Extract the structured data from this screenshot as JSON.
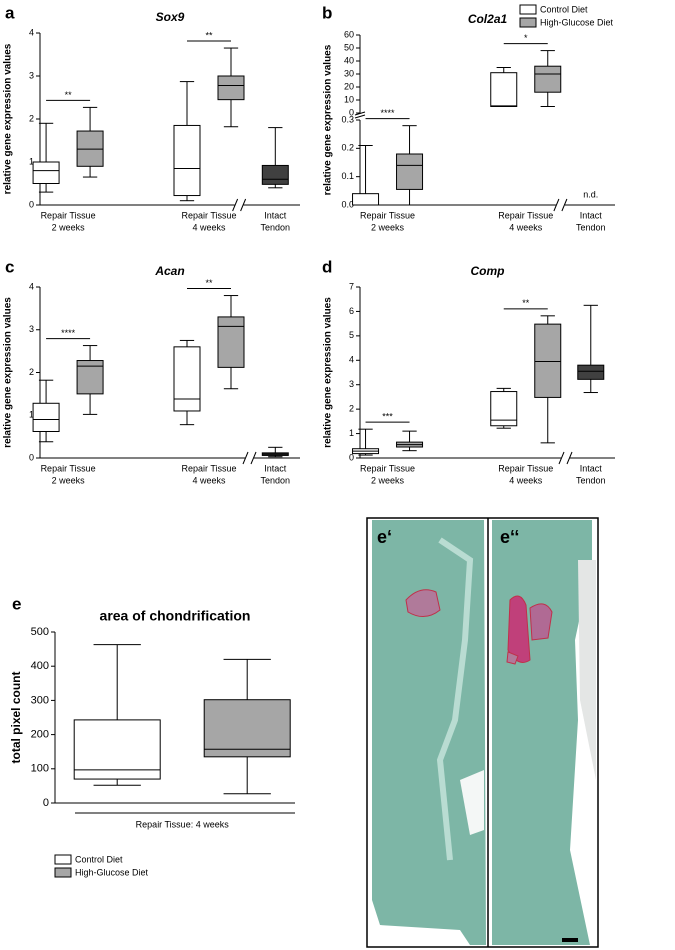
{
  "chart_data": [
    {
      "type": "box",
      "letter": "a",
      "title": "Sox9",
      "italic_title": true,
      "ylabel": "relative gene expression values",
      "ylim": [
        0,
        4
      ],
      "yticks": [
        0,
        1,
        2,
        3,
        4
      ],
      "axis_break": true,
      "categories": [
        {
          "label": [
            "Repair Tissue",
            "2 weeks"
          ],
          "significance": "**",
          "boxes": [
            {
              "color": "#ffffff",
              "stats": [
                0.3,
                0.5,
                0.8,
                1.0,
                1.9
              ]
            },
            {
              "color": "#a6a6a6",
              "stats": [
                0.65,
                0.9,
                1.3,
                1.72,
                2.27
              ]
            }
          ]
        },
        {
          "label": [
            "Repair Tissue",
            "4 weeks"
          ],
          "significance": "**",
          "boxes": [
            {
              "color": "#ffffff",
              "stats": [
                0.1,
                0.22,
                0.85,
                1.85,
                2.87
              ]
            },
            {
              "color": "#a6a6a6",
              "stats": [
                1.82,
                2.45,
                2.78,
                3.0,
                3.65
              ]
            }
          ]
        },
        {
          "label": [
            "Intact",
            "Tendon"
          ],
          "boxes": [
            {
              "color": "#404040",
              "stats": [
                0.4,
                0.48,
                0.6,
                0.92,
                1.8
              ]
            }
          ]
        }
      ]
    },
    {
      "type": "box",
      "letter": "b",
      "title": "Col2a1",
      "italic_title": true,
      "ylabel": "relative gene expression values",
      "ylim": [
        0,
        0.3
      ],
      "yticks": [
        {
          "value": 0,
          "label": "0.0"
        },
        0.1,
        0.2,
        0.3
      ],
      "upper_ylim": [
        0,
        60
      ],
      "upper_yticks": [
        0,
        10,
        20,
        30,
        40,
        50,
        60
      ],
      "axis_break": true,
      "legend": [
        {
          "name": "Control Diet",
          "color": "#ffffff"
        },
        {
          "name": "High-Glucose Diet",
          "color": "#a6a6a6"
        }
      ],
      "categories": [
        {
          "label": [
            "Repair Tissue",
            "2 weeks"
          ],
          "significance": "****",
          "boxes": [
            {
              "color": "#ffffff",
              "stats": [
                0,
                0,
                0,
                0.04,
                0.21
              ]
            },
            {
              "color": "#a6a6a6",
              "stats": [
                0,
                0.055,
                0.14,
                0.18,
                0.28
              ]
            }
          ]
        },
        {
          "label": [
            "Repair Tissue",
            "4 weeks"
          ],
          "significance": "*",
          "boxes": [
            {
              "color": "#ffffff",
              "stats": [
                5,
                5,
                5.5,
                31,
                35
              ]
            },
            {
              "color": "#a6a6a6",
              "stats": [
                5,
                16,
                30,
                36,
                48
              ]
            }
          ]
        },
        {
          "label": [
            "Intact",
            "Tendon"
          ],
          "note": "n.d.",
          "boxes": []
        }
      ]
    },
    {
      "type": "box",
      "letter": "c",
      "title": "Acan",
      "italic_title": true,
      "ylabel": "relative gene expression values",
      "ylim": [
        0,
        4
      ],
      "yticks": [
        0,
        1,
        2,
        3,
        4
      ],
      "axis_break": true,
      "categories": [
        {
          "label": [
            "Repair Tissue",
            "2 weeks"
          ],
          "significance": "****",
          "boxes": [
            {
              "color": "#ffffff",
              "stats": [
                0.38,
                0.62,
                0.9,
                1.28,
                1.82
              ]
            },
            {
              "color": "#a6a6a6",
              "stats": [
                1.02,
                1.5,
                2.15,
                2.28,
                2.63
              ]
            }
          ]
        },
        {
          "label": [
            "Repair Tissue",
            "4 weeks"
          ],
          "significance": "**",
          "boxes": [
            {
              "color": "#ffffff",
              "stats": [
                0.78,
                1.1,
                1.38,
                2.6,
                2.75
              ]
            },
            {
              "color": "#a6a6a6",
              "stats": [
                1.62,
                2.12,
                3.08,
                3.3,
                3.8
              ]
            }
          ]
        },
        {
          "label": [
            "Intact",
            "Tendon"
          ],
          "boxes": [
            {
              "color": "#404040",
              "stats": [
                0.03,
                0.06,
                0.09,
                0.12,
                0.25
              ]
            }
          ]
        }
      ]
    },
    {
      "type": "box",
      "letter": "d",
      "title": "Comp",
      "italic_title": true,
      "ylabel": "relative gene expression values",
      "ylim": [
        0,
        7
      ],
      "yticks": [
        0,
        1,
        2,
        3,
        4,
        5,
        6,
        7
      ],
      "axis_break": true,
      "categories": [
        {
          "label": [
            "Repair Tissue",
            "2 weeks"
          ],
          "significance": "***",
          "boxes": [
            {
              "color": "#ffffff",
              "stats": [
                0.12,
                0.18,
                0.28,
                0.38,
                1.18
              ]
            },
            {
              "color": "#a6a6a6",
              "stats": [
                0.3,
                0.45,
                0.55,
                0.65,
                1.1
              ]
            }
          ]
        },
        {
          "label": [
            "Repair Tissue",
            "4 weeks"
          ],
          "significance": "**",
          "boxes": [
            {
              "color": "#ffffff",
              "stats": [
                1.22,
                1.32,
                1.55,
                2.72,
                2.85
              ]
            },
            {
              "color": "#a6a6a6",
              "stats": [
                0.62,
                2.48,
                3.95,
                5.48,
                5.82
              ]
            }
          ]
        },
        {
          "label": [
            "Intact",
            "Tendon"
          ],
          "boxes": [
            {
              "color": "#404040",
              "stats": [
                2.68,
                3.22,
                3.55,
                3.8,
                6.25
              ]
            }
          ]
        }
      ]
    },
    {
      "type": "box",
      "letter": "e",
      "title": "area of chondrification",
      "italic_title": false,
      "ylabel": "total pixel count",
      "ylim": [
        0,
        500
      ],
      "yticks": [
        0,
        100,
        200,
        300,
        400,
        500
      ],
      "axis_break": false,
      "legend": [
        {
          "name": "Control Diet",
          "color": "#ffffff"
        },
        {
          "name": "High-Glucose Diet",
          "color": "#a6a6a6"
        }
      ],
      "categories": [
        {
          "label": [
            "Repair Tissue: 4 weeks"
          ],
          "boxes": [
            {
              "color": "#ffffff",
              "stats": [
                52,
                70,
                97,
                243,
                463
              ]
            },
            {
              "color": "#a6a6a6",
              "stats": [
                27,
                135,
                157,
                302,
                420
              ]
            }
          ]
        }
      ]
    }
  ],
  "images": [
    {
      "label": "e‘"
    },
    {
      "label": "e‘‘"
    }
  ]
}
